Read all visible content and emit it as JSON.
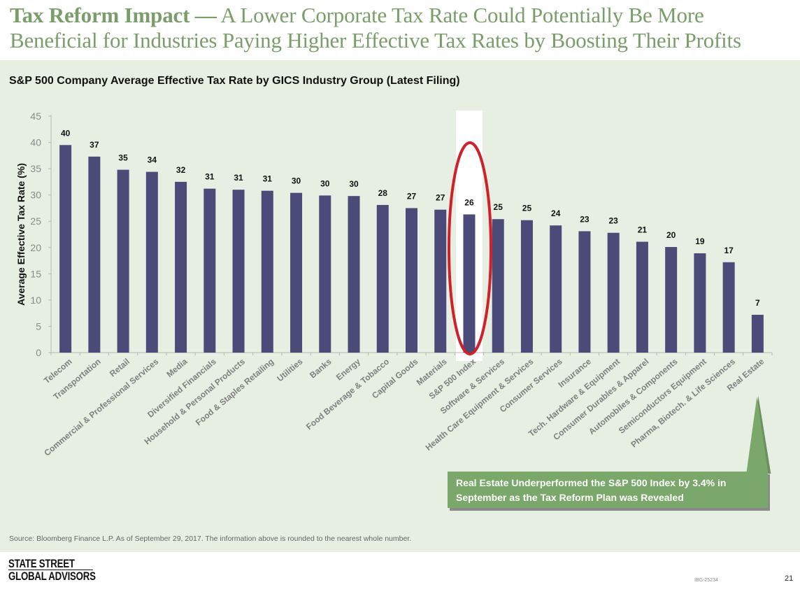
{
  "headline": {
    "bold": "Tax Reform Impact —",
    "rest": " A Lower Corporate Tax Rate Could Potentially Be More Beneficial for Industries Paying Higher Effective Tax Rates by Boosting Their Profits"
  },
  "chart_title": "S&P 500 Company Average Effective Tax Rate by GICS Industry Group (Latest Filing)",
  "chart_data": {
    "type": "bar",
    "title": "S&P 500 Company Average Effective Tax Rate by GICS Industry Group (Latest Filing)",
    "xlabel": "",
    "ylabel": "Average Effective Tax Rate (%)",
    "ylim": [
      0,
      45
    ],
    "yticks": [
      0,
      5,
      10,
      15,
      20,
      25,
      30,
      35,
      40,
      45
    ],
    "grid": false,
    "categories": [
      "Telecom",
      "Transportation",
      "Retail",
      "Commercial & Professional Services",
      "Media",
      "Diversified Financials",
      "Household & Personal Products",
      "Food & Staples Retailing",
      "Utilities",
      "Banks",
      "Energy",
      "Food Beverage & Tobacco",
      "Capital Goods",
      "Materials",
      "S&P 500 Index",
      "Software & Services",
      "Health Care Equipment & Services",
      "Consumer Services",
      "Insurance",
      "Tech. Hardware & Equipment",
      "Consumer Durables & Apparel",
      "Automobiles & Components",
      "Semiconductors Equipment",
      "Pharma, Biotech. & Life Sciences",
      "Real Estate"
    ],
    "values": [
      39.5,
      37.3,
      34.8,
      34.4,
      32.5,
      31.2,
      31.0,
      30.8,
      30.4,
      29.9,
      29.8,
      28.1,
      27.5,
      27.2,
      26.3,
      25.4,
      25.2,
      24.2,
      23.1,
      22.8,
      21.1,
      20.1,
      18.9,
      17.2,
      7.2
    ],
    "data_labels": [
      "40",
      "37",
      "35",
      "34",
      "32",
      "31",
      "31",
      "31",
      "30",
      "30",
      "30",
      "28",
      "27",
      "27",
      "26",
      "25",
      "25",
      "24",
      "23",
      "23",
      "21",
      "20",
      "19",
      "17",
      "7"
    ],
    "highlight_category": "S&P 500 Index",
    "bar_color": "#4a4b78",
    "highlight_ring_color": "#d0202a",
    "annotation": {
      "target": "Real Estate",
      "text_line1": "Real Estate Underperformed the S&P 500 Index by 3.4% in",
      "text_line2": "September as the Tax Reform Plan was Revealed",
      "color": "#7aa86a"
    }
  },
  "footer": {
    "source": "Source: Bloomberg Finance L.P. As of September 29, 2017. The information above is rounded to the nearest whole number.",
    "logo_line1": "STATE STREET",
    "logo_line2": "GLOBAL ADVISORS",
    "doc_id": "IBG-25234",
    "page_number": "21"
  }
}
